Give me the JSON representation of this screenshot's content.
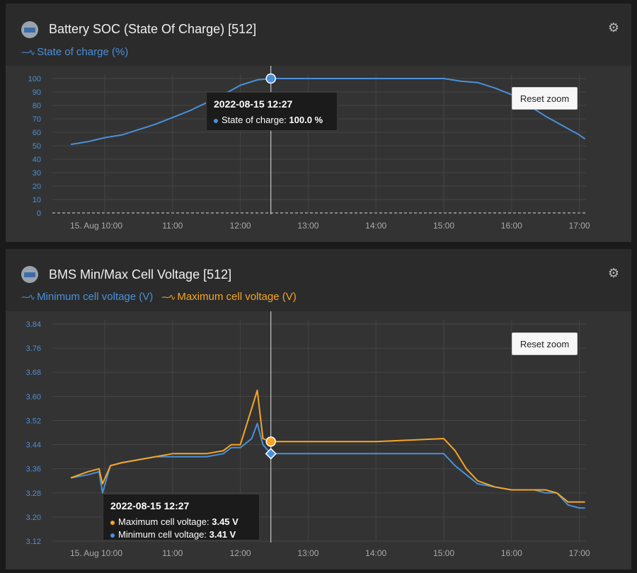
{
  "colors": {
    "min_series": "#4a90d9",
    "max_series": "#f5a623",
    "soc_series": "#4a90d9"
  },
  "panels": [
    {
      "title": "Battery SOC (State Of Charge) [512]",
      "legend": [
        "State of charge (%)"
      ],
      "reset_label": "Reset zoom",
      "tooltip": {
        "title": "2022-08-15 12:27",
        "rows": [
          {
            "label": "State of charge:",
            "value": "100.0 %"
          }
        ]
      }
    },
    {
      "title": "BMS Min/Max Cell Voltage [512]",
      "legend": [
        "Minimum cell voltage (V)",
        "Maximum cell voltage (V)"
      ],
      "reset_label": "Reset zoom",
      "tooltip": {
        "title": "2022-08-15 12:27",
        "rows": [
          {
            "label": "Maximum cell voltage:",
            "value": "3.45 V"
          },
          {
            "label": "Minimum cell voltage:",
            "value": "3.41 V"
          }
        ]
      }
    }
  ],
  "chart_data": [
    {
      "type": "line",
      "title": "Battery SOC (State Of Charge) [512]",
      "xlabel": "",
      "ylabel": "",
      "x_ticks": [
        "15. Aug 10:00",
        "11:00",
        "12:00",
        "13:00",
        "14:00",
        "15:00",
        "16:00",
        "17:00"
      ],
      "y_ticks": [
        "0",
        "10",
        "20",
        "30",
        "40",
        "50",
        "60",
        "70",
        "80",
        "90",
        "100"
      ],
      "xlim": [
        "09:30",
        "17:05"
      ],
      "ylim": [
        0,
        100
      ],
      "grid": true,
      "crosshair_x": "12:27",
      "series": [
        {
          "name": "State of charge (%)",
          "x": [
            "09:30",
            "09:45",
            "10:00",
            "10:15",
            "10:30",
            "10:45",
            "11:00",
            "11:15",
            "11:30",
            "11:45",
            "12:00",
            "12:15",
            "12:27",
            "13:00",
            "14:00",
            "15:00",
            "15:15",
            "15:30",
            "15:45",
            "16:00",
            "16:15",
            "16:30",
            "16:45",
            "17:00",
            "17:05"
          ],
          "values": [
            51,
            53,
            56,
            58,
            62,
            66,
            71,
            76,
            82,
            88,
            95,
            99,
            100,
            100,
            100,
            100,
            98,
            97,
            93,
            88,
            80,
            72,
            65,
            58,
            55
          ]
        }
      ]
    },
    {
      "type": "line",
      "title": "BMS Min/Max Cell Voltage [512]",
      "xlabel": "",
      "ylabel": "",
      "x_ticks": [
        "15. Aug 10:00",
        "11:00",
        "12:00",
        "13:00",
        "14:00",
        "15:00",
        "16:00",
        "17:00"
      ],
      "y_ticks": [
        "3.12",
        "3.20",
        "3.28",
        "3.36",
        "3.44",
        "3.52",
        "3.60",
        "3.68",
        "3.76",
        "3.84"
      ],
      "xlim": [
        "09:30",
        "17:05"
      ],
      "ylim": [
        3.12,
        3.84
      ],
      "grid": true,
      "crosshair_x": "12:27",
      "series": [
        {
          "name": "Minimum cell voltage (V)",
          "x": [
            "09:30",
            "09:45",
            "09:55",
            "09:58",
            "10:05",
            "10:15",
            "10:30",
            "10:45",
            "11:00",
            "11:15",
            "11:30",
            "11:45",
            "11:52",
            "12:00",
            "12:10",
            "12:15",
            "12:20",
            "12:27",
            "13:00",
            "14:00",
            "15:00",
            "15:10",
            "15:20",
            "15:30",
            "15:45",
            "16:00",
            "16:20",
            "16:30",
            "16:40",
            "16:50",
            "17:00",
            "17:05"
          ],
          "values": [
            3.33,
            3.34,
            3.35,
            3.28,
            3.37,
            3.38,
            3.39,
            3.4,
            3.4,
            3.4,
            3.4,
            3.41,
            3.43,
            3.43,
            3.46,
            3.51,
            3.44,
            3.41,
            3.41,
            3.41,
            3.41,
            3.37,
            3.34,
            3.31,
            3.3,
            3.29,
            3.29,
            3.28,
            3.28,
            3.24,
            3.23,
            3.23
          ]
        },
        {
          "name": "Maximum cell voltage (V)",
          "x": [
            "09:30",
            "09:45",
            "09:55",
            "09:58",
            "10:05",
            "10:15",
            "10:30",
            "10:45",
            "11:00",
            "11:15",
            "11:30",
            "11:45",
            "11:52",
            "12:00",
            "12:10",
            "12:15",
            "12:20",
            "12:27",
            "13:00",
            "14:00",
            "15:00",
            "15:10",
            "15:20",
            "15:30",
            "15:45",
            "16:00",
            "16:20",
            "16:30",
            "16:40",
            "16:50",
            "17:00",
            "17:05"
          ],
          "values": [
            3.33,
            3.35,
            3.36,
            3.31,
            3.37,
            3.38,
            3.39,
            3.4,
            3.41,
            3.41,
            3.41,
            3.42,
            3.44,
            3.44,
            3.56,
            3.62,
            3.46,
            3.45,
            3.45,
            3.45,
            3.46,
            3.42,
            3.36,
            3.32,
            3.3,
            3.29,
            3.29,
            3.29,
            3.28,
            3.25,
            3.25,
            3.25
          ]
        }
      ]
    }
  ]
}
